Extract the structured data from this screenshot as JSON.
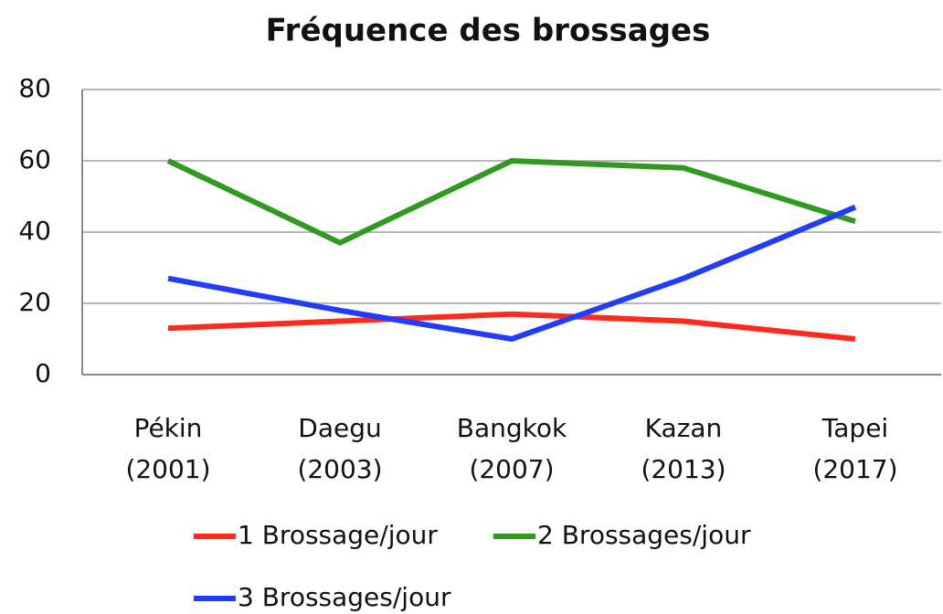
{
  "chart_data": {
    "type": "line",
    "title": "Fréquence des brossages",
    "categories": [
      "Pékin (2001)",
      "Daegu (2003)",
      "Bangkok (2007)",
      "Kazan (2013)",
      "Tapei (2017)"
    ],
    "series": [
      {
        "name": "1 Brossage/jour",
        "color": "#ff2a1a",
        "values": [
          13,
          15,
          17,
          15,
          10
        ]
      },
      {
        "name": "2 Brossages/jour",
        "color": "#2e9a1e",
        "values": [
          60,
          37,
          60,
          58,
          43
        ]
      },
      {
        "name": "3 Brossages/jour",
        "color": "#1f3cff",
        "values": [
          27,
          18,
          10,
          27,
          47
        ]
      }
    ],
    "ylim": [
      0,
      80
    ],
    "yticks": [
      0,
      20,
      40,
      60,
      80
    ],
    "grid": true
  }
}
